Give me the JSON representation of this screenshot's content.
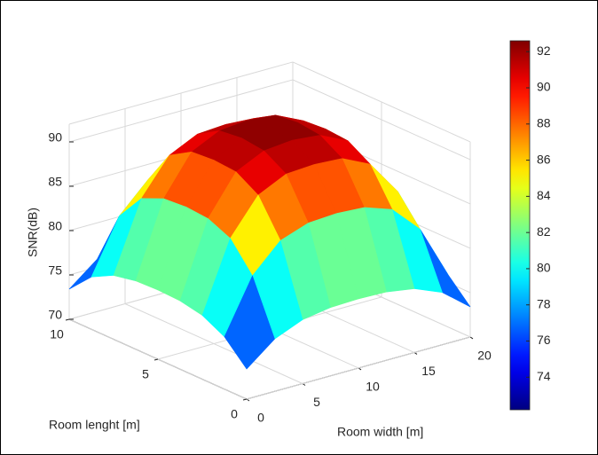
{
  "chart_data": {
    "type": "surface",
    "xlabel": "Room width [m]",
    "ylabel": "Room lenght [m]",
    "zlabel": "SNR(dB)",
    "x": [
      0,
      2.5,
      5,
      7.5,
      10,
      12.5,
      15,
      17.5,
      20
    ],
    "y": [
      0,
      1.25,
      2.5,
      3.75,
      5,
      6.25,
      7.5,
      8.75,
      10
    ],
    "z": [
      [
        73.4,
        75.9,
        77.2,
        77.7,
        77.8,
        77.7,
        77.2,
        75.9,
        73.4
      ],
      [
        75.9,
        81.9,
        85.0,
        86.1,
        86.3,
        86.1,
        85.0,
        81.9,
        75.9
      ],
      [
        77.2,
        85.0,
        89.0,
        90.5,
        90.7,
        90.5,
        89.0,
        85.0,
        77.2
      ],
      [
        77.7,
        86.1,
        90.5,
        92.0,
        92.3,
        92.0,
        90.5,
        86.1,
        77.7
      ],
      [
        77.8,
        86.3,
        90.7,
        92.3,
        92.5,
        92.3,
        90.7,
        86.3,
        77.8
      ],
      [
        77.7,
        86.1,
        90.5,
        92.0,
        92.3,
        92.0,
        90.5,
        86.1,
        77.7
      ],
      [
        77.2,
        85.0,
        89.0,
        90.5,
        90.7,
        90.5,
        89.0,
        85.0,
        77.2
      ],
      [
        75.9,
        81.9,
        85.0,
        86.1,
        86.3,
        86.1,
        85.0,
        81.9,
        75.9
      ],
      [
        73.4,
        75.9,
        77.2,
        77.7,
        77.8,
        77.7,
        77.2,
        75.9,
        73.4
      ]
    ],
    "xlim": [
      0,
      20
    ],
    "xticks": [
      0,
      5,
      10,
      15,
      20
    ],
    "ylim": [
      0,
      10
    ],
    "yticks": [
      0,
      5,
      10
    ],
    "zlim": [
      70,
      92
    ],
    "zticks": [
      70,
      75,
      80,
      85,
      90
    ],
    "clim": [
      72.2,
      92.6
    ],
    "cticks": [
      74,
      76,
      78,
      80,
      82,
      84,
      86,
      88,
      90,
      92
    ],
    "colormap": "jet",
    "grid": true
  }
}
